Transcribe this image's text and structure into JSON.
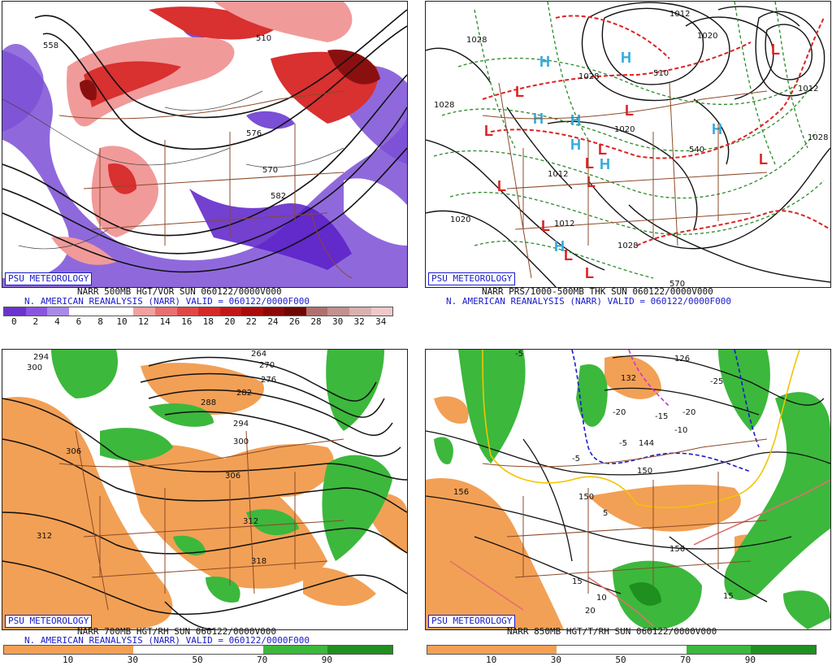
{
  "panels": [
    {
      "id": "p1",
      "badge": "PSU METEOROLOGY",
      "caption_line1": "NARR 500MB HGT/VOR SUN 060122/0000V000",
      "caption_line2": "N. AMERICAN REANALYSIS (NARR) VALID = 060122/0000F000",
      "scale_labels": [
        "0",
        "2",
        "4",
        "6",
        "8",
        "10",
        "12",
        "14",
        "16",
        "18",
        "20",
        "22",
        "24",
        "26",
        "28",
        "30",
        "32",
        "34"
      ],
      "scale_colors": [
        "#6a33cc",
        "#8a55dd",
        "#a98ae6",
        "#ffffff",
        "#ffffff",
        "#ffffff",
        "#f2a0a0",
        "#e87070",
        "#e04848",
        "#d52a2a",
        "#c01818",
        "#a80c0c",
        "#8c0808",
        "#6e0606",
        "#b07070",
        "#c49090",
        "#dab0b0",
        "#f0c8c8"
      ],
      "contour_labels": [
        "558",
        "510",
        "570",
        "582",
        "576"
      ]
    },
    {
      "id": "p2",
      "badge": "PSU METEOROLOGY",
      "caption_line1": "NARR PRS/1000-500MB THK SUN 060122/0000V000",
      "caption_line2": "N. AMERICAN REANALYSIS (NARR) VALID = 060122/0000F000",
      "contour_labels": [
        "1028",
        "1020",
        "1012",
        "1028",
        "1020",
        "1028",
        "1020",
        "1012",
        "1020",
        "1028",
        "1012",
        "1020",
        "540",
        "570",
        "510"
      ],
      "high_marks": 8,
      "low_marks": 12
    },
    {
      "id": "p3",
      "badge": "PSU METEOROLOGY",
      "caption_line1": "NARR 700MB HGT/RH SUN 060122/0000V000",
      "caption_line2": "N. AMERICAN REANALYSIS (NARR) VALID = 060122/0000F000",
      "scale_labels": [
        "10",
        "30",
        "50",
        "70",
        "90"
      ],
      "contour_labels": [
        "294",
        "300",
        "264",
        "270",
        "276",
        "288",
        "282",
        "294",
        "300",
        "306",
        "306",
        "312",
        "312",
        "318"
      ]
    },
    {
      "id": "p4",
      "badge": "PSU METEOROLOGY",
      "caption_line1": "NARR 850MB HGT/T/RH SUN 060122/0000V000",
      "scale_labels": [
        "10",
        "30",
        "50",
        "70",
        "90"
      ],
      "contour_labels": [
        "-5",
        "126",
        "132",
        "-25",
        "-20",
        "-20",
        "-15",
        "-10",
        "-5",
        "144",
        "-5",
        "150",
        "156",
        "150",
        "156",
        "5",
        "15",
        "10",
        "20",
        "15"
      ]
    }
  ],
  "colors": {
    "purple": "#7b4fd6",
    "deep_purple": "#5b1fc8",
    "red": "#d93030",
    "dark_red": "#8a1010",
    "pink": "#f19a9a",
    "orange": "#f2a055",
    "green": "#3cb83c",
    "dark_green": "#1f8f1f",
    "brown": "#8b4a2b",
    "high_blue": "#33aadd",
    "low_red": "#dd2222"
  }
}
